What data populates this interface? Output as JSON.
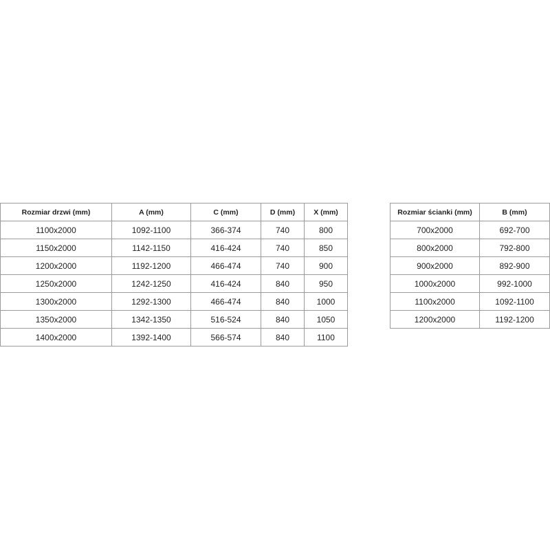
{
  "door_table": {
    "headers": [
      "Rozmiar drzwi (mm)",
      "A (mm)",
      "C (mm)",
      "D (mm)",
      "X (mm)"
    ],
    "rows": [
      [
        "1100x2000",
        "1092-1100",
        "366-374",
        "740",
        "800"
      ],
      [
        "1150x2000",
        "1142-1150",
        "416-424",
        "740",
        "850"
      ],
      [
        "1200x2000",
        "1192-1200",
        "466-474",
        "740",
        "900"
      ],
      [
        "1250x2000",
        "1242-1250",
        "416-424",
        "840",
        "950"
      ],
      [
        "1300x2000",
        "1292-1300",
        "466-474",
        "840",
        "1000"
      ],
      [
        "1350x2000",
        "1342-1350",
        "516-524",
        "840",
        "1050"
      ],
      [
        "1400x2000",
        "1392-1400",
        "566-574",
        "840",
        "1100"
      ]
    ]
  },
  "wall_table": {
    "headers": [
      "Rozmiar ścianki (mm)",
      "B (mm)"
    ],
    "rows": [
      [
        "700x2000",
        "692-700"
      ],
      [
        "800x2000",
        "792-800"
      ],
      [
        "900x2000",
        "892-900"
      ],
      [
        "1000x2000",
        "992-1000"
      ],
      [
        "1100x2000",
        "1092-1100"
      ],
      [
        "1200x2000",
        "1192-1200"
      ]
    ]
  }
}
